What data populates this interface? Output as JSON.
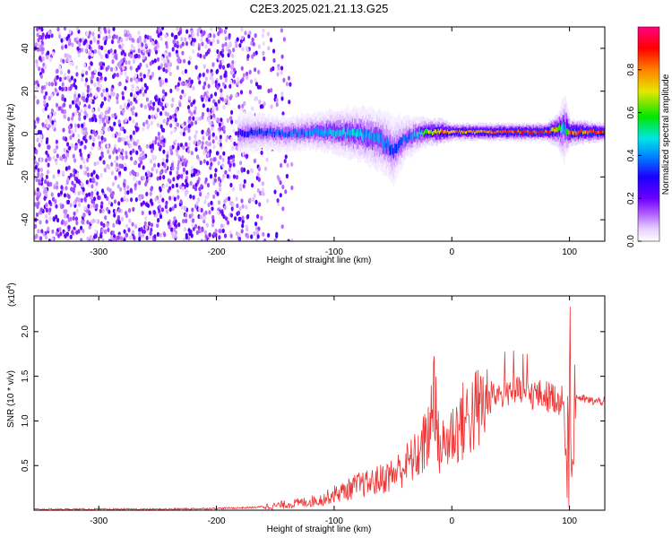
{
  "title": "C2E3.2025.021.21.13.G25",
  "chart_data": [
    {
      "type": "heatmap",
      "xlabel": "Height of straight line (km)",
      "ylabel": "Frequency (Hz)",
      "xlim": [
        -355,
        130
      ],
      "ylim": [
        -50,
        50
      ],
      "xticks": [
        -300,
        -200,
        -100,
        0,
        100
      ],
      "yticks": [
        -40,
        -20,
        0,
        20,
        40
      ],
      "colorbar": {
        "label": "Normalized spectral amplitude",
        "range": [
          0,
          1
        ],
        "ticks": [
          "0.0",
          "0.2",
          "0.4",
          "0.6",
          "0.8"
        ],
        "colors": [
          "#ffffff",
          "#e6ccff",
          "#a64dff",
          "#6a00ff",
          "#1a00ff",
          "#0088ff",
          "#00e6e6",
          "#00e600",
          "#e6e600",
          "#ff8000",
          "#ff0000",
          "#ff0080"
        ]
      },
      "noise_region_x": [
        -355,
        -135
      ],
      "signal_band": {
        "x": [
          -182,
          -160,
          -140,
          -120,
          -100,
          -80,
          -60,
          -50,
          -40,
          -30,
          -20,
          -10,
          0,
          20,
          40,
          60,
          80,
          90,
          95,
          100,
          130
        ],
        "center_hz": [
          0,
          1,
          0,
          1,
          1,
          0,
          -3,
          -8,
          -2,
          0,
          1,
          1,
          1,
          1,
          1,
          1,
          1,
          2,
          3,
          1,
          1
        ],
        "halfwidth_hz": [
          5,
          4,
          4,
          4,
          5,
          6,
          7,
          8,
          5,
          4,
          3,
          3,
          2,
          2,
          2,
          2,
          2,
          4,
          8,
          3,
          2
        ],
        "peak_amplitude": [
          0.3,
          0.4,
          0.4,
          0.45,
          0.5,
          0.5,
          0.45,
          0.35,
          0.4,
          0.5,
          0.75,
          0.85,
          0.85,
          0.9,
          0.9,
          0.95,
          0.95,
          0.7,
          0.4,
          0.9,
          0.95
        ]
      }
    },
    {
      "type": "line",
      "xlabel": "Height of straight line (km)",
      "ylabel": "SNR (10 * v/v)",
      "y_multiplier": "(x10",
      "y_multiplier_exp": "4",
      "y_multiplier_close": ")",
      "xlim": [
        -355,
        130
      ],
      "ylim": [
        0,
        2.4
      ],
      "xticks": [
        -300,
        -200,
        -100,
        0,
        100
      ],
      "yticks": [
        "0.5",
        "1.0",
        "1.5",
        "2.0"
      ],
      "color": "#ee3333",
      "series": [
        {
          "x": [
            -355,
            -300,
            -250,
            -200,
            -170,
            -150,
            -130,
            -110,
            -100,
            -90,
            -80,
            -70,
            -60,
            -50,
            -45,
            -40,
            -35,
            -30,
            -25,
            -20,
            -17,
            -15,
            -12,
            -10,
            -5,
            0,
            10,
            20,
            30,
            35,
            40,
            50,
            60,
            70,
            80,
            90,
            95,
            98,
            100,
            102,
            105,
            110,
            120,
            130
          ],
          "y": [
            0.01,
            0.01,
            0.01,
            0.02,
            0.03,
            0.05,
            0.08,
            0.12,
            0.18,
            0.22,
            0.28,
            0.3,
            0.35,
            0.4,
            0.45,
            0.5,
            0.55,
            0.6,
            0.7,
            0.85,
            1.1,
            1.5,
            0.8,
            0.7,
            0.75,
            0.85,
            1.0,
            1.1,
            1.2,
            1.3,
            1.3,
            1.35,
            1.3,
            1.3,
            1.28,
            1.25,
            1.2,
            0.1,
            2.3,
            0.3,
            1.28,
            1.25,
            1.22,
            1.22
          ]
        }
      ]
    }
  ]
}
